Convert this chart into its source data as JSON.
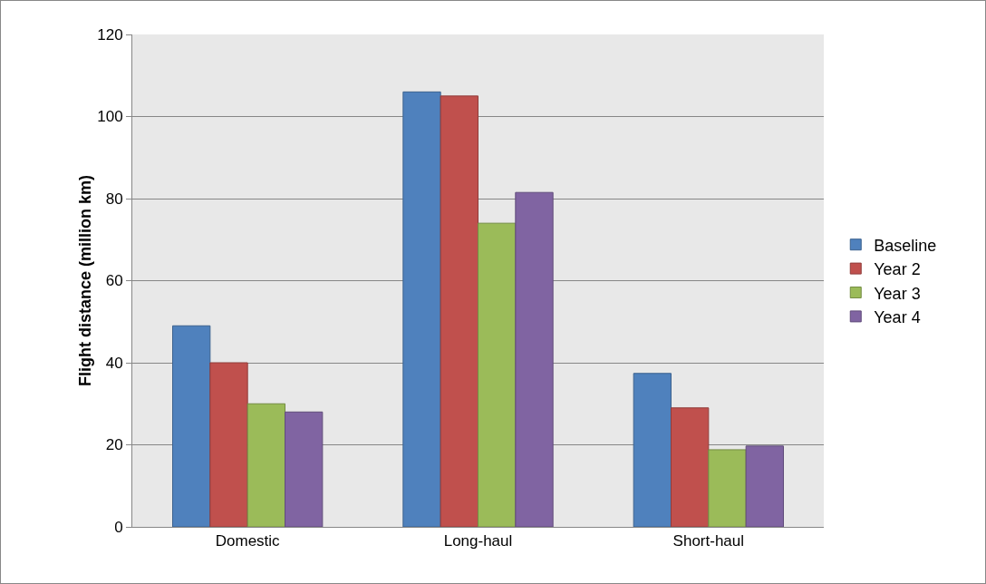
{
  "chart_data": {
    "type": "bar",
    "ylabel": "Flight distance (million km)",
    "categories": [
      "Domestic",
      "Long-haul",
      "Short-haul"
    ],
    "series": [
      {
        "name": "Baseline",
        "color": "#4f81bd",
        "values": [
          49,
          106,
          37.4
        ]
      },
      {
        "name": "Year 2",
        "color": "#c0504d",
        "values": [
          40,
          105,
          29
        ]
      },
      {
        "name": "Year 3",
        "color": "#9bbb59",
        "values": [
          30,
          74,
          18.8
        ]
      },
      {
        "name": "Year 4",
        "color": "#8064a2",
        "values": [
          28,
          81.5,
          19.7
        ]
      }
    ],
    "ylim": [
      0,
      120
    ],
    "yticks": [
      0,
      20,
      40,
      60,
      80,
      100,
      120
    ],
    "grid": "y",
    "legend": "right"
  }
}
